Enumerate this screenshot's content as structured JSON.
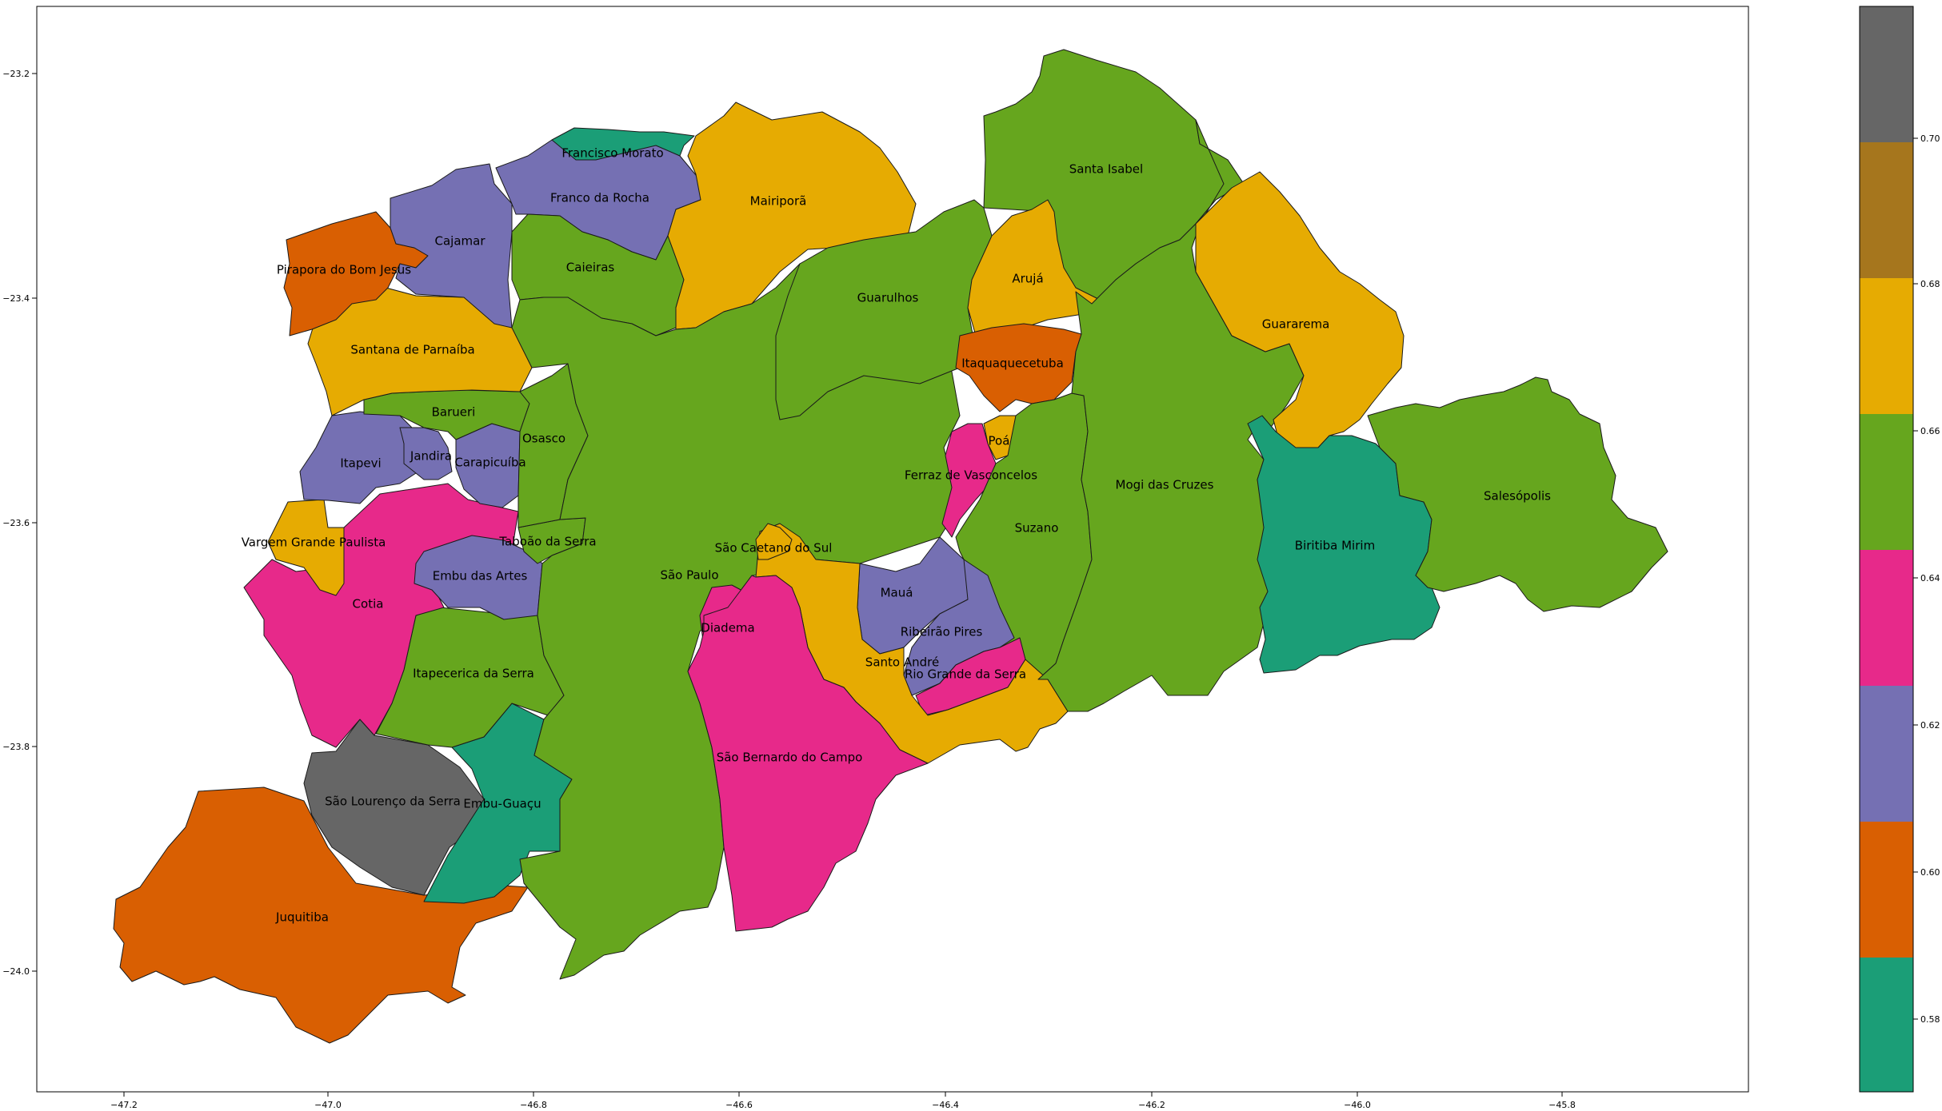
{
  "palette": {
    "teal": "#1b9e77",
    "orange": "#d95f02",
    "purple": "#7570b3",
    "magenta": "#e7298a",
    "green": "#66a61e",
    "yellow": "#e6ab02",
    "brown": "#a6761d",
    "gray": "#666666"
  },
  "axes": {
    "x_ticks": [
      "−47.2",
      "−47.0",
      "−46.8",
      "−46.6",
      "−46.4",
      "−46.2",
      "−46.0",
      "−45.8"
    ],
    "y_ticks": [
      "−23.2",
      "−23.4",
      "−23.6",
      "−23.8",
      "−24.0"
    ]
  },
  "colorbar": {
    "ticks": [
      "0.70",
      "0.68",
      "0.66",
      "0.64",
      "0.62",
      "0.60",
      "0.58"
    ],
    "bands": [
      "gray",
      "brown",
      "yellow",
      "green",
      "magenta",
      "purple",
      "orange",
      "teal"
    ]
  },
  "municipalities": [
    {
      "name": "Francisco Morato",
      "color": "teal"
    },
    {
      "name": "Franco da Rocha",
      "color": "purple"
    },
    {
      "name": "Cajamar",
      "color": "purple"
    },
    {
      "name": "Pirapora do Bom Jesus",
      "color": "orange"
    },
    {
      "name": "Caieiras",
      "color": "green"
    },
    {
      "name": "Mairiporã",
      "color": "yellow"
    },
    {
      "name": "Santa Isabel",
      "color": "green"
    },
    {
      "name": "Arujá",
      "color": "yellow"
    },
    {
      "name": "Guarulhos",
      "color": "green"
    },
    {
      "name": "Guararema",
      "color": "yellow"
    },
    {
      "name": "Santana de Parnaíba",
      "color": "yellow"
    },
    {
      "name": "Itaquaquecetuba",
      "color": "orange"
    },
    {
      "name": "Barueri",
      "color": "green"
    },
    {
      "name": "Osasco",
      "color": "green"
    },
    {
      "name": "Poá",
      "color": "yellow"
    },
    {
      "name": "Jandira",
      "color": "purple"
    },
    {
      "name": "Itapevi",
      "color": "purple"
    },
    {
      "name": "Carapicuíba",
      "color": "purple"
    },
    {
      "name": "Ferraz de Vasconcelos",
      "color": "magenta"
    },
    {
      "name": "Mogi das Cruzes",
      "color": "green"
    },
    {
      "name": "Salesópolis",
      "color": "green"
    },
    {
      "name": "Suzano",
      "color": "green"
    },
    {
      "name": "Biritiba Mirim",
      "color": "teal"
    },
    {
      "name": "Vargem Grande Paulista",
      "color": "yellow"
    },
    {
      "name": "Taboão da Serra",
      "color": "green"
    },
    {
      "name": "São Caetano do Sul",
      "color": "yellow"
    },
    {
      "name": "Embu das Artes",
      "color": "purple"
    },
    {
      "name": "São Paulo",
      "color": "green"
    },
    {
      "name": "Mauá",
      "color": "purple"
    },
    {
      "name": "Cotia",
      "color": "magenta"
    },
    {
      "name": "Diadema",
      "color": "magenta"
    },
    {
      "name": "Ribeirão Pires",
      "color": "purple"
    },
    {
      "name": "Santo André",
      "color": "yellow"
    },
    {
      "name": "Rio Grande da Serra",
      "color": "magenta"
    },
    {
      "name": "Itapecerica da Serra",
      "color": "green"
    },
    {
      "name": "São Bernardo do Campo",
      "color": "magenta"
    },
    {
      "name": "São Lourenço da Serra",
      "color": "gray"
    },
    {
      "name": "Embu-Guaçu",
      "color": "teal"
    },
    {
      "name": "Juquitiba",
      "color": "orange"
    }
  ]
}
